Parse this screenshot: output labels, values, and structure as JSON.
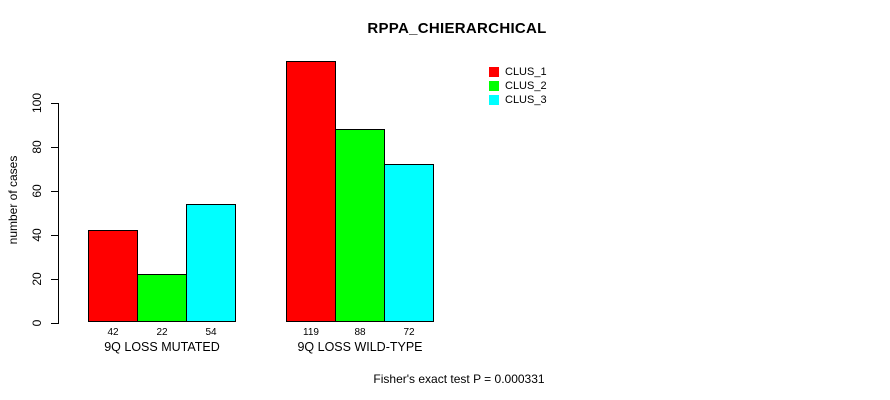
{
  "title": "RPPA_CHIERARCHICAL",
  "chart_data": {
    "type": "bar",
    "title": "RPPA_CHIERARCHICAL",
    "categories": [
      "9Q LOSS MUTATED",
      "9Q LOSS WILD-TYPE"
    ],
    "series": [
      {
        "name": "CLUS_1",
        "color": "#ff0000",
        "values": [
          42,
          119
        ]
      },
      {
        "name": "CLUS_2",
        "color": "#00ff00",
        "values": [
          22,
          88
        ]
      },
      {
        "name": "CLUS_3",
        "color": "#00ffff",
        "values": [
          54,
          72
        ]
      }
    ],
    "xlabel": "",
    "ylabel": "number of cases",
    "yticks": [
      0,
      20,
      40,
      60,
      80,
      100
    ],
    "ylim": [
      0,
      100
    ],
    "bar_value_labels_shown": true,
    "grid": false,
    "legend_position": "top-right",
    "bar_border_color": "#000000",
    "annotation": "Fisher's exact test P = 0.000331"
  },
  "footer": {
    "note": "Fisher's exact test P = 0.000331"
  }
}
